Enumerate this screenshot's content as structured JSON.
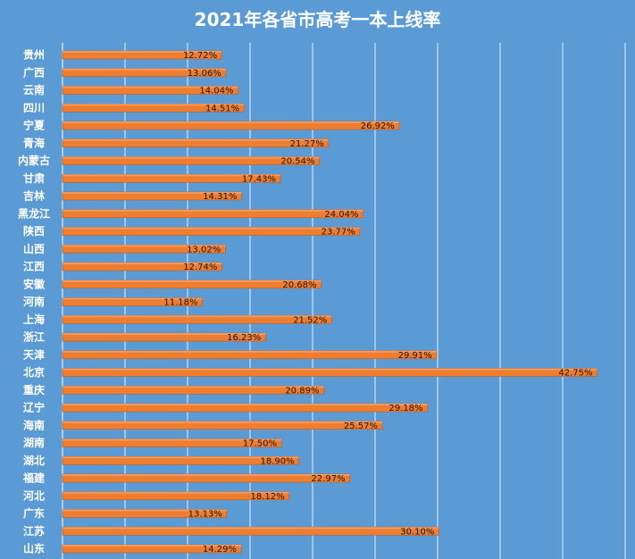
{
  "chart_data": {
    "type": "bar",
    "orientation": "horizontal",
    "title": "2021年各省市高考一本上线率",
    "xlim": [
      0,
      45
    ],
    "grid": true,
    "legend": "none",
    "bar_color": "#ed7d31",
    "grid_color": "#ffffff",
    "background": "#5b9bd5",
    "series": [
      {
        "categories": [
          "贵州",
          "广西",
          "云南",
          "四川",
          "宁夏",
          "青海",
          "内蒙古",
          "甘肃",
          "吉林",
          "黑龙江",
          "陕西",
          "山西",
          "江西",
          "安徽",
          "河南",
          "上海",
          "浙江",
          "天津",
          "北京",
          "重庆",
          "辽宁",
          "海南",
          "湖南",
          "湖北",
          "福建",
          "河北",
          "广东",
          "江苏",
          "山东"
        ],
        "values": [
          12.72,
          13.06,
          14.04,
          14.51,
          26.92,
          21.27,
          20.54,
          17.43,
          14.31,
          24.04,
          23.77,
          13.02,
          12.74,
          20.68,
          11.18,
          21.52,
          16.23,
          29.91,
          42.75,
          20.89,
          29.18,
          25.57,
          17.5,
          18.9,
          22.97,
          18.12,
          13.13,
          30.1,
          14.29
        ],
        "labels": [
          "12.72%",
          "13.06%",
          "14.04%",
          "14.51%",
          "26.92%",
          "21.27%",
          "20.54%",
          "17.43%",
          "14.31%",
          "24.04%",
          "23.77%",
          "13.02%",
          "12.74%",
          "20.68%",
          "11.18%",
          "21.52%",
          "16.23%",
          "29.91%",
          "42.75%",
          "20.89%",
          "29.18%",
          "25.57%",
          "17.50%",
          "18.90%",
          "22.97%",
          "18.12%",
          "13.13%",
          "30.10%",
          "14.29%"
        ]
      }
    ]
  }
}
